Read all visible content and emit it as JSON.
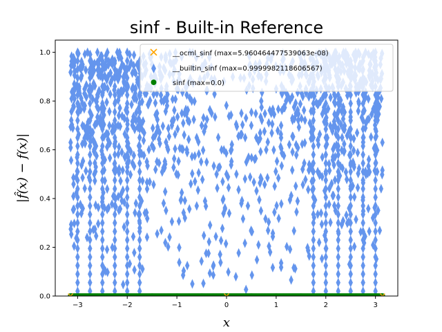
{
  "chart_data": {
    "type": "scatter",
    "title": "sinf - Built-in Reference",
    "xlabel": "x",
    "ylabel": "|f̂(x) − f(x)|",
    "xlim": [
      -3.45,
      3.45
    ],
    "ylim": [
      0.0,
      1.05
    ],
    "x_ticks": [
      -3,
      -2,
      -1,
      0,
      1,
      2,
      3
    ],
    "x_tick_labels": [
      "−3",
      "−2",
      "−1",
      "0",
      "1",
      "2",
      "3"
    ],
    "y_ticks": [
      0.0,
      0.2,
      0.4,
      0.6,
      0.8,
      1.0
    ],
    "y_tick_labels": [
      "0.0",
      "0.2",
      "0.4",
      "0.6",
      "0.8",
      "1.0"
    ],
    "grid": false,
    "legend_position": "top-right",
    "series": [
      {
        "name": "__ocml_sinf (max=5.960464477539063e-08)",
        "marker": "x",
        "color": "#ffa500",
        "x": [
          -3.1416,
          0.0,
          3.1416
        ],
        "y": [
          6e-08,
          6e-08,
          6e-08
        ]
      },
      {
        "name": "__builtin_sinf (max=0.9999982118606567)",
        "marker": "thin_diamond",
        "color": "#6495ed",
        "x": [
          -3.14,
          -3.1,
          -3.0,
          -2.9,
          -2.8,
          -2.7,
          -2.6,
          -2.5,
          -2.4,
          -2.3,
          -2.2,
          -2.1,
          -2.0,
          -1.9,
          -1.8,
          -1.7,
          -1.6,
          -1.5,
          -1.4,
          -1.3,
          -1.2,
          -1.1,
          -1.0,
          -0.9,
          -0.8,
          -0.7,
          -0.6,
          -0.5,
          -0.4,
          -0.3,
          -0.2,
          -0.1,
          0.0,
          0.1,
          0.2,
          0.3,
          0.4,
          0.5,
          0.6,
          0.7,
          0.8,
          0.9,
          1.0,
          1.1,
          1.2,
          1.3,
          1.4,
          1.5,
          1.6,
          1.7,
          1.8,
          1.9,
          2.0,
          2.1,
          2.2,
          2.3,
          2.4,
          2.5,
          2.6,
          2.7,
          2.8,
          2.9,
          3.0,
          3.1,
          3.14
        ],
        "y": [
          0.63,
          0.95,
          1.0,
          0.95,
          1.0,
          0.95,
          1.0,
          0.95,
          1.0,
          0.95,
          1.0,
          0.95,
          1.0,
          0.85,
          0.95,
          0.9,
          0.85,
          0.95,
          0.75,
          0.9,
          0.8,
          0.7,
          0.85,
          0.75,
          0.6,
          0.8,
          0.65,
          0.7,
          0.55,
          0.75,
          0.5,
          0.6,
          0.5,
          0.6,
          0.5,
          0.75,
          0.55,
          0.7,
          0.65,
          0.8,
          0.6,
          0.75,
          0.85,
          0.7,
          0.8,
          0.9,
          0.75,
          0.95,
          0.85,
          0.9,
          0.95,
          0.85,
          1.0,
          0.95,
          1.0,
          0.95,
          1.0,
          0.95,
          1.0,
          0.95,
          1.0,
          0.95,
          1.0,
          0.95,
          0.63
        ]
      },
      {
        "name": "sinf (max=0.0)",
        "marker": "o",
        "color": "#008000",
        "x": [
          -3.14,
          -2.5,
          -2.0,
          -1.5,
          -1.0,
          -0.5,
          0.0,
          0.5,
          1.0,
          1.5,
          2.0,
          2.5,
          3.14
        ],
        "y": [
          0,
          0,
          0,
          0,
          0,
          0,
          0,
          0,
          0,
          0,
          0,
          0,
          0
        ]
      }
    ]
  }
}
